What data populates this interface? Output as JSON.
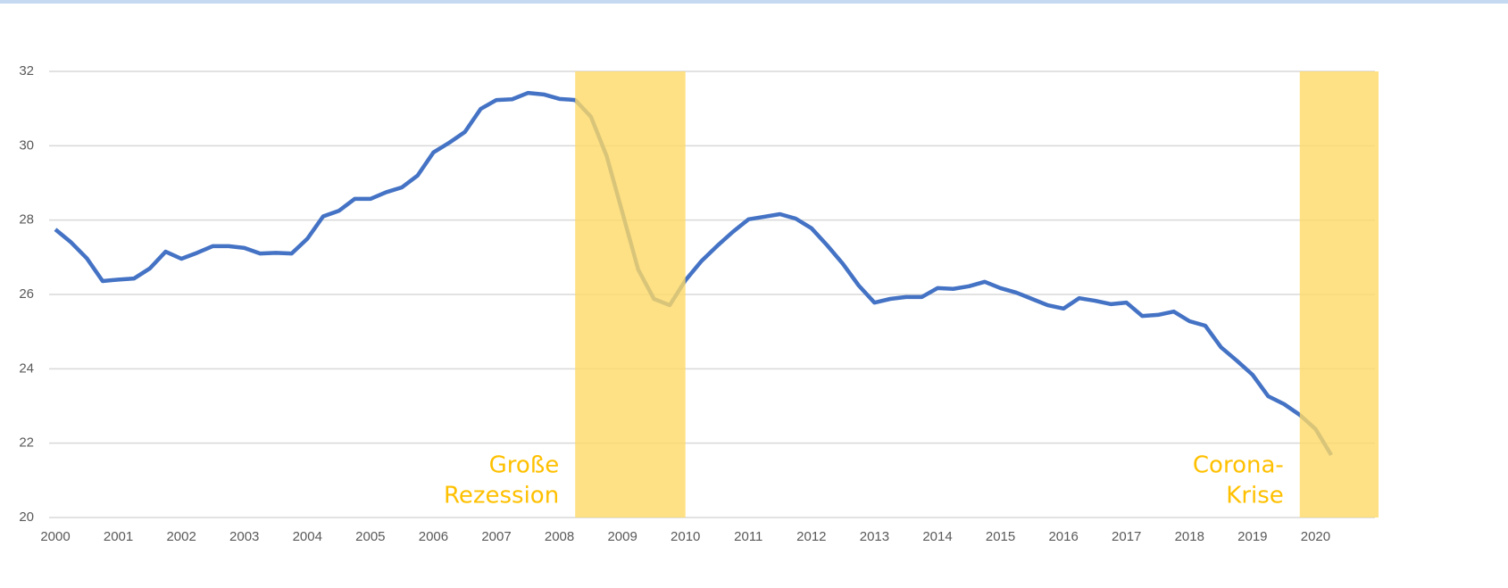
{
  "chart_data": {
    "type": "line",
    "x": [
      2000,
      2000.25,
      2000.5,
      2000.75,
      2001,
      2001.25,
      2001.5,
      2001.75,
      2002,
      2002.25,
      2002.5,
      2002.75,
      2003,
      2003.25,
      2003.5,
      2003.75,
      2004,
      2004.25,
      2004.5,
      2004.75,
      2005,
      2005.25,
      2005.5,
      2005.75,
      2006,
      2006.25,
      2006.5,
      2006.75,
      2007,
      2007.25,
      2007.5,
      2007.75,
      2008,
      2008.25,
      2008.5,
      2008.75,
      2009,
      2009.25,
      2009.5,
      2009.75,
      2010,
      2010.25,
      2010.5,
      2010.75,
      2011,
      2011.25,
      2011.5,
      2011.75,
      2012,
      2012.25,
      2012.5,
      2012.75,
      2013,
      2013.25,
      2013.5,
      2013.75,
      2014,
      2014.25,
      2014.5,
      2014.75,
      2015,
      2015.25,
      2015.5,
      2015.75,
      2016,
      2016.25,
      2016.5,
      2016.75,
      2017,
      2017.25,
      2017.5,
      2017.75,
      2018,
      2018.25,
      2018.5,
      2018.75,
      2019,
      2019.25,
      2019.5,
      2019.75,
      2020,
      2020.25
    ],
    "series": [
      {
        "color": "#4472c4",
        "values": [
          27.75,
          27.4,
          26.97,
          26.36,
          26.4,
          26.43,
          26.7,
          27.15,
          26.96,
          27.12,
          27.3,
          27.3,
          27.25,
          27.1,
          27.12,
          27.1,
          27.5,
          28.1,
          28.25,
          28.57,
          28.57,
          28.75,
          28.88,
          29.2,
          29.82,
          30.08,
          30.37,
          30.99,
          31.23,
          31.25,
          31.42,
          31.38,
          31.26,
          31.23,
          30.78,
          29.72,
          28.2,
          26.67,
          25.88,
          25.71,
          26.38,
          26.89,
          27.3,
          27.68,
          28.02,
          28.09,
          28.16,
          28.04,
          27.78,
          27.32,
          26.82,
          26.24,
          25.78,
          25.88,
          25.93,
          25.93,
          26.17,
          26.15,
          26.22,
          26.34,
          26.17,
          26.05,
          25.88,
          25.71,
          25.62,
          25.9,
          25.83,
          25.74,
          25.78,
          25.42,
          25.45,
          25.54,
          25.28,
          25.16,
          24.58,
          24.22,
          23.84,
          23.26,
          23.05,
          22.76,
          22.38,
          21.68
        ]
      }
    ],
    "xlim": [
      2000,
      2021
    ],
    "xticks": [
      2000,
      2001,
      2002,
      2003,
      2004,
      2005,
      2006,
      2007,
      2008,
      2009,
      2010,
      2011,
      2012,
      2013,
      2014,
      2015,
      2016,
      2017,
      2018,
      2019,
      2020
    ],
    "ylim": [
      20,
      32
    ],
    "yticks": [
      20,
      22,
      24,
      26,
      28,
      30,
      32
    ],
    "grid": true,
    "shaded": [
      {
        "from": 2008.25,
        "to": 2010,
        "color": "#ffd966",
        "label": [
          "Große",
          "Rezession"
        ]
      },
      {
        "from": 2019.75,
        "to": 2021,
        "color": "#ffd966",
        "label": [
          "Corona-",
          "Krise"
        ]
      }
    ]
  }
}
